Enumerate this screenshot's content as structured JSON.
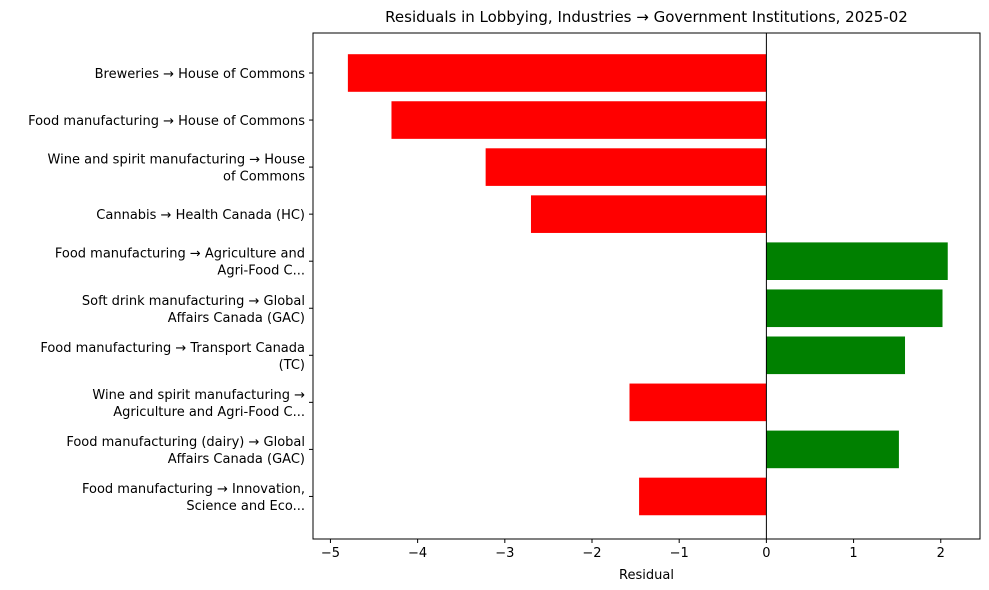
{
  "chart_data": {
    "type": "bar",
    "orientation": "horizontal",
    "title": "Residuals in Lobbying, Industries → Government Institutions, 2025-02",
    "xlabel": "Residual",
    "ylabel": "",
    "xlim": [
      -5.2,
      2.45
    ],
    "xticks": [
      -5,
      -4,
      -3,
      -2,
      -1,
      0,
      1,
      2
    ],
    "xtick_labels": [
      "−5",
      "−4",
      "−3",
      "−2",
      "−1",
      "0",
      "1",
      "2"
    ],
    "grid": false,
    "legend": "none",
    "colors": {
      "positive": "#008000",
      "negative": "#ff0000",
      "zero_line": "#000000"
    },
    "categories": [
      [
        "Breweries → House of Commons"
      ],
      [
        "Food manufacturing → House of Commons"
      ],
      [
        "Wine and spirit manufacturing → House",
        "of Commons"
      ],
      [
        "Cannabis → Health Canada (HC)"
      ],
      [
        "Food manufacturing → Agriculture and",
        "Agri-Food C..."
      ],
      [
        "Soft drink manufacturing  → Global",
        "Affairs Canada (GAC)"
      ],
      [
        "Food manufacturing → Transport Canada",
        "(TC)"
      ],
      [
        "Wine and spirit manufacturing →",
        "Agriculture and Agri-Food C..."
      ],
      [
        "Food manufacturing (dairy) → Global",
        "Affairs Canada (GAC)"
      ],
      [
        "Food manufacturing → Innovation,",
        "Science and Eco..."
      ]
    ],
    "values": [
      -4.8,
      -4.3,
      -3.22,
      -2.7,
      2.08,
      2.02,
      1.59,
      -1.57,
      1.52,
      -1.46
    ]
  }
}
